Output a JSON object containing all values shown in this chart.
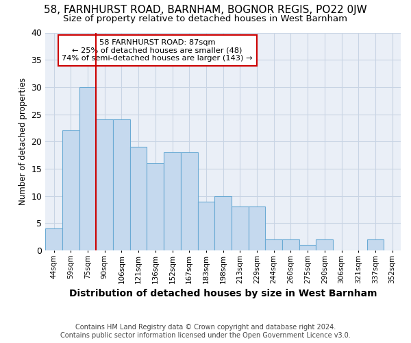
{
  "title1": "58, FARNHURST ROAD, BARNHAM, BOGNOR REGIS, PO22 0JW",
  "title2": "Size of property relative to detached houses in West Barnham",
  "xlabel": "Distribution of detached houses by size in West Barnham",
  "ylabel": "Number of detached properties",
  "categories": [
    "44sqm",
    "59sqm",
    "75sqm",
    "90sqm",
    "106sqm",
    "121sqm",
    "136sqm",
    "152sqm",
    "167sqm",
    "183sqm",
    "198sqm",
    "213sqm",
    "229sqm",
    "244sqm",
    "260sqm",
    "275sqm",
    "290sqm",
    "306sqm",
    "321sqm",
    "337sqm",
    "352sqm"
  ],
  "values": [
    4,
    22,
    30,
    24,
    24,
    19,
    16,
    18,
    18,
    9,
    10,
    8,
    8,
    2,
    2,
    1,
    2,
    0,
    0,
    2,
    0
  ],
  "bar_color": "#c5d9ee",
  "bar_edge_color": "#6aaad4",
  "vline_x_index": 3,
  "annotation_text1": "58 FARNHURST ROAD: 87sqm",
  "annotation_text2": "← 25% of detached houses are smaller (48)",
  "annotation_text3": "74% of semi-detached houses are larger (143) →",
  "annotation_box_color": "#ffffff",
  "annotation_box_edge": "#cc0000",
  "vline_color": "#cc0000",
  "grid_color": "#c8d4e4",
  "background_color": "#eaeff7",
  "ylim": [
    0,
    40
  ],
  "yticks": [
    0,
    5,
    10,
    15,
    20,
    25,
    30,
    35,
    40
  ],
  "title1_fontsize": 11,
  "title2_fontsize": 9.5,
  "ylabel_fontsize": 8.5,
  "xlabel_fontsize": 10,
  "footer1": "Contains HM Land Registry data © Crown copyright and database right 2024.",
  "footer2": "Contains public sector information licensed under the Open Government Licence v3.0."
}
